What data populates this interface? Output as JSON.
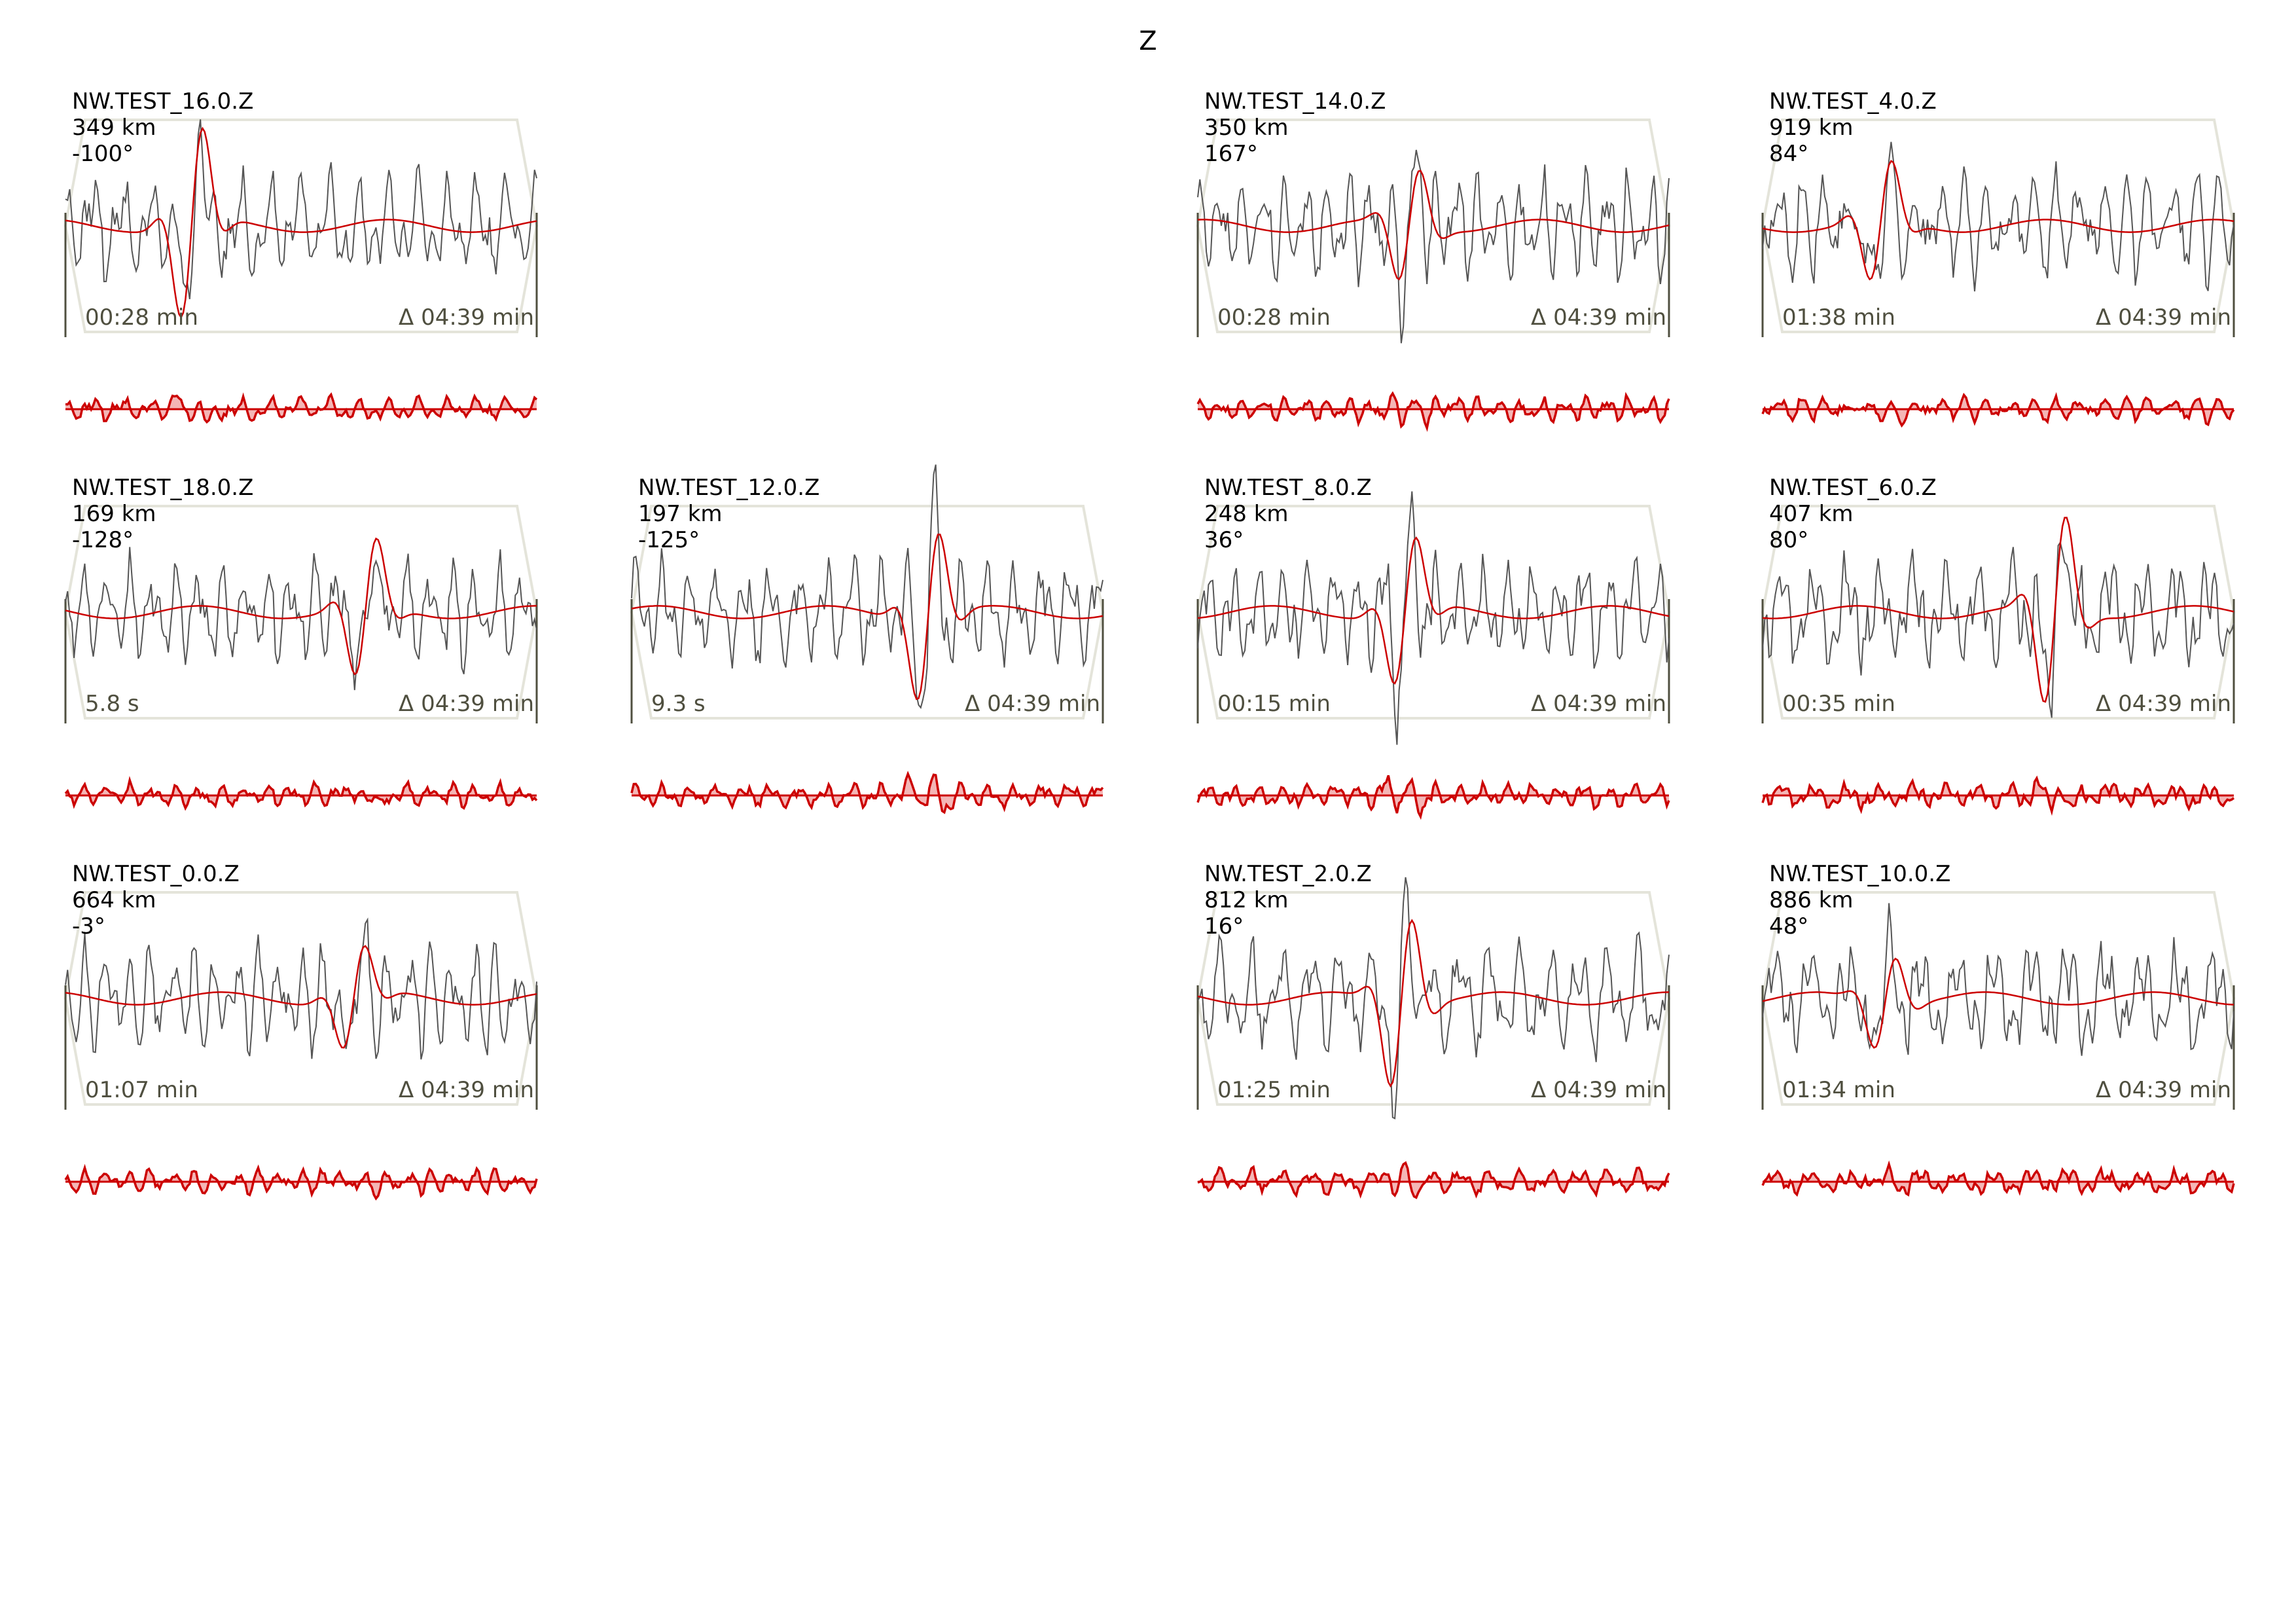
{
  "title": "Z",
  "chart_data": [
    {
      "type": "line",
      "station": "NW.TEST_16.0.Z",
      "distance": "349 km",
      "azimuth": "-100°",
      "start_time": "00:28 min",
      "duration": "Δ 04:39 min",
      "row": 0,
      "col": 0,
      "seed": 16
    },
    {
      "type": "line",
      "station": "NW.TEST_14.0.Z",
      "distance": "350 km",
      "azimuth": "167°",
      "start_time": "00:28 min",
      "duration": "Δ 04:39 min",
      "row": 0,
      "col": 2,
      "seed": 14
    },
    {
      "type": "line",
      "station": "NW.TEST_4.0.Z",
      "distance": "919 km",
      "azimuth": "84°",
      "start_time": "01:38 min",
      "duration": "Δ 04:39 min",
      "row": 0,
      "col": 3,
      "seed": 4
    },
    {
      "type": "line",
      "station": "NW.TEST_18.0.Z",
      "distance": "169 km",
      "azimuth": "-128°",
      "start_time": "5.8 s",
      "duration": "Δ 04:39 min",
      "row": 1,
      "col": 0,
      "seed": 18
    },
    {
      "type": "line",
      "station": "NW.TEST_12.0.Z",
      "distance": "197 km",
      "azimuth": "-125°",
      "start_time": "9.3 s",
      "duration": "Δ 04:39 min",
      "row": 1,
      "col": 1,
      "seed": 12
    },
    {
      "type": "line",
      "station": "NW.TEST_8.0.Z",
      "distance": "248 km",
      "azimuth": "36°",
      "start_time": "00:15 min",
      "duration": "Δ 04:39 min",
      "row": 1,
      "col": 2,
      "seed": 8
    },
    {
      "type": "line",
      "station": "NW.TEST_6.0.Z",
      "distance": "407 km",
      "azimuth": "80°",
      "start_time": "00:35 min",
      "duration": "Δ 04:39 min",
      "row": 1,
      "col": 3,
      "seed": 6
    },
    {
      "type": "line",
      "station": "NW.TEST_0.0.Z",
      "distance": "664 km",
      "azimuth": "-3°",
      "start_time": "01:07 min",
      "duration": "Δ 04:39 min",
      "row": 2,
      "col": 0,
      "seed": 0
    },
    {
      "type": "line",
      "station": "NW.TEST_2.0.Z",
      "distance": "812 km",
      "azimuth": "16°",
      "start_time": "01:25 min",
      "duration": "Δ 04:39 min",
      "row": 2,
      "col": 2,
      "seed": 2
    },
    {
      "type": "line",
      "station": "NW.TEST_10.0.Z",
      "distance": "886 km",
      "azimuth": "48°",
      "start_time": "01:34 min",
      "duration": "Δ 04:39 min",
      "row": 2,
      "col": 3,
      "seed": 10
    }
  ],
  "colors": {
    "observed": "#555555",
    "synthetic": "#cc0000",
    "residual_fill": "#f4b6b6",
    "taper": "#e4e4da",
    "axis": "#4f4f3f",
    "time_text": "#4f4f3f"
  }
}
